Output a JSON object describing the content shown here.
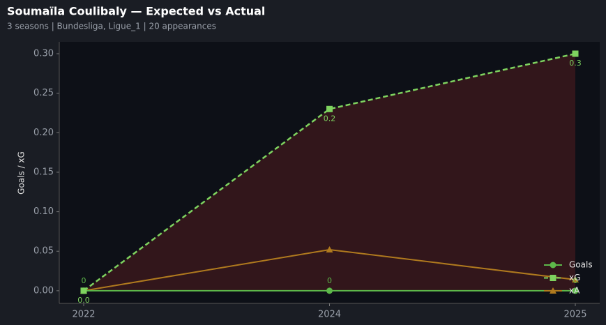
{
  "chart_data": {
    "type": "line",
    "title": "Soumaïla Coulibaly — Expected vs Actual",
    "subtitle": "3 seasons | Bundesliga, Ligue_1 | 20 appearances",
    "y_label": "Goals / xG",
    "categories": [
      "2022",
      "2024",
      "2025"
    ],
    "series": [
      {
        "name": "Goals",
        "color": "#5db84a",
        "marker": "circle",
        "dash": false,
        "values": [
          0,
          0,
          0
        ]
      },
      {
        "name": "xG",
        "color": "#7ed35f",
        "marker": "square",
        "dash": true,
        "values": [
          0,
          0.23,
          0.3
        ],
        "value_labels": [
          "0.0",
          "0.2",
          "0.3"
        ]
      },
      {
        "name": "xA",
        "color": "#b07a1e",
        "marker": "triangle",
        "dash": false,
        "values": [
          0,
          0.052,
          0.014
        ]
      }
    ],
    "ylim": [
      -0.016,
      0.315
    ],
    "yticks": [
      {
        "value": 0,
        "label": "0.00"
      },
      {
        "value": 0.05,
        "label": "0.05"
      },
      {
        "value": 0.1,
        "label": "0.10"
      },
      {
        "value": 0.15,
        "label": "0.15"
      },
      {
        "value": 0.2,
        "label": "0.20"
      },
      {
        "value": 0.25,
        "label": "0.25"
      },
      {
        "value": 0.3,
        "label": "0.30"
      }
    ],
    "legend": "lower right"
  }
}
